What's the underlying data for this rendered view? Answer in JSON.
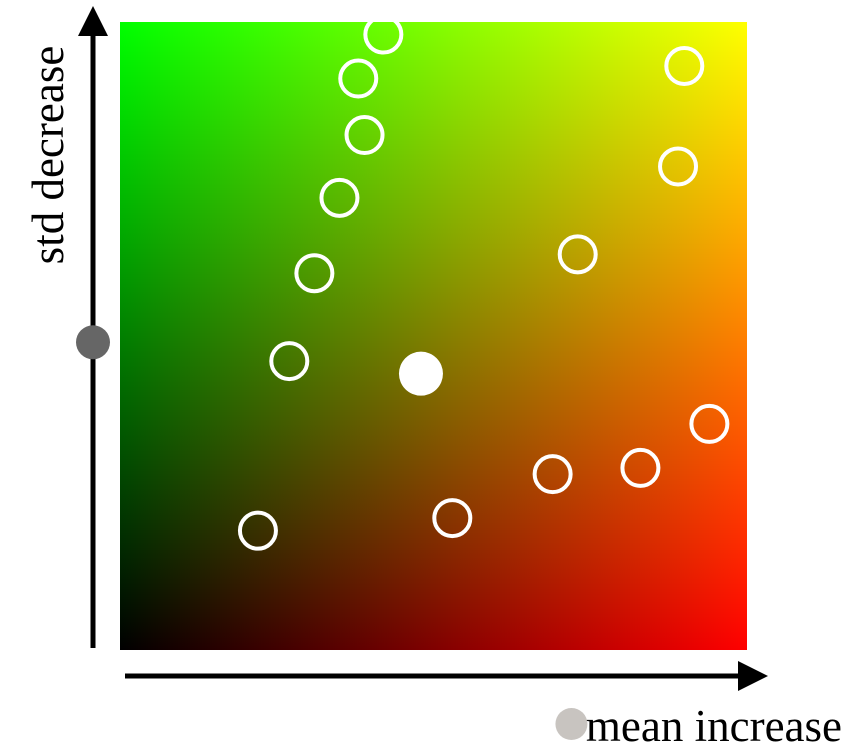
{
  "labels": {
    "y_axis": "std decrease",
    "x_axis": "mean increase"
  },
  "colors": {
    "bottom_left": "#000000",
    "bottom_right": "#ff0000",
    "top_left": "#00ff00",
    "top_right": "#ffff00",
    "marker_outline": "#ffffff",
    "filled_center": "#ffffff",
    "y_axis_marker": "#666666",
    "x_axis_marker": "#c8c4c0",
    "axis": "#000000"
  },
  "chart_data": {
    "type": "scatter",
    "xlabel": "mean increase",
    "ylabel": "std decrease",
    "gradient": "2d: x→red, y→green",
    "points": [
      {
        "x": 0.22,
        "y": 0.19
      },
      {
        "x": 0.27,
        "y": 0.46
      },
      {
        "x": 0.31,
        "y": 0.6
      },
      {
        "x": 0.35,
        "y": 0.72
      },
      {
        "x": 0.39,
        "y": 0.82
      },
      {
        "x": 0.38,
        "y": 0.91
      },
      {
        "x": 0.42,
        "y": 0.98
      },
      {
        "x": 0.53,
        "y": 0.21
      },
      {
        "x": 0.69,
        "y": 0.28
      },
      {
        "x": 0.83,
        "y": 0.29
      },
      {
        "x": 0.94,
        "y": 0.36
      },
      {
        "x": 0.73,
        "y": 0.63
      },
      {
        "x": 0.89,
        "y": 0.77
      },
      {
        "x": 0.9,
        "y": 0.93
      }
    ],
    "highlight_point": {
      "x": 0.48,
      "y": 0.44
    },
    "y_axis_marker": 0.49,
    "x_axis_marker": 0.72
  }
}
